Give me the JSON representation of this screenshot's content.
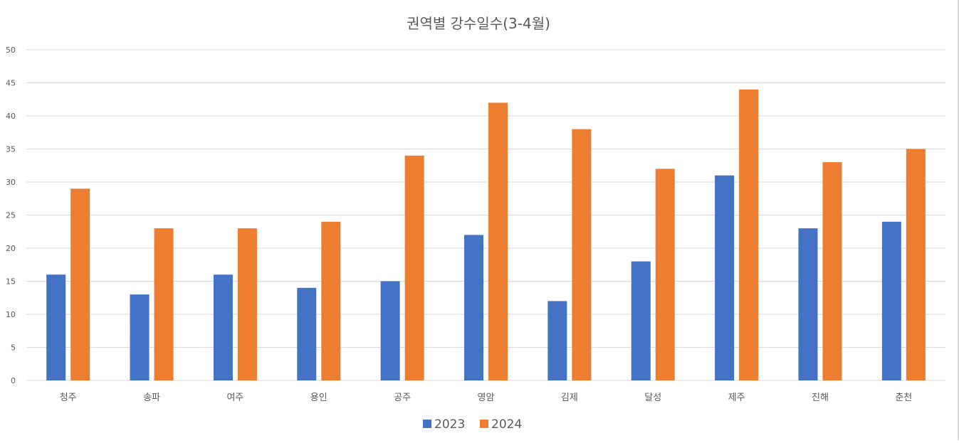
{
  "chart_data": {
    "type": "bar",
    "title": "권역별 강수일수(3-4월)",
    "categories": [
      "청주",
      "송파",
      "여주",
      "용인",
      "공주",
      "영암",
      "김제",
      "달성",
      "제주",
      "진해",
      "춘천"
    ],
    "series": [
      {
        "name": "2023",
        "color": "#4472c4",
        "values": [
          16,
          13,
          16,
          14,
          15,
          22,
          12,
          18,
          31,
          23,
          24
        ]
      },
      {
        "name": "2024",
        "color": "#ed7d31",
        "values": [
          29,
          23,
          23,
          24,
          34,
          42,
          38,
          32,
          44,
          33,
          35
        ]
      }
    ],
    "ylim": [
      0,
      50
    ],
    "yticks": [
      "0",
      "5",
      "10",
      "15",
      "20",
      "25",
      "30",
      "35",
      "40",
      "45",
      "50"
    ],
    "grid": true,
    "legend_position": "bottom",
    "gridline_color": "#d9d9d9",
    "text_color": "#595959"
  }
}
